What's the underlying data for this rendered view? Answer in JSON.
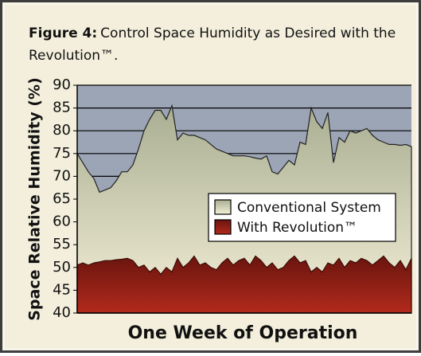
{
  "chart_data": {
    "type": "area",
    "title_label": "Figure 4:",
    "title": "Control Space Humidity as Desired with the Revolution™.",
    "ylabel": "Space Relative Humidity (%)",
    "xlabel": "One Week of Operation",
    "ylim": [
      40,
      90
    ],
    "yticks": [
      40,
      45,
      50,
      55,
      60,
      65,
      70,
      75,
      80,
      85,
      90
    ],
    "grid": true,
    "legend": "right",
    "series": [
      {
        "name": "Conventional System",
        "color": "#a9ae92",
        "values": [
          75,
          73,
          71,
          69.5,
          66.5,
          67,
          67.5,
          69,
          71,
          71,
          72.5,
          76,
          80,
          82.5,
          84.5,
          84.5,
          82.5,
          85.5,
          78,
          79.5,
          79,
          79,
          78.5,
          78,
          77,
          76,
          75.5,
          75,
          74.5,
          74.5,
          74.5,
          74.3,
          74,
          73.8,
          74.5,
          71,
          70.5,
          72,
          73.5,
          72.5,
          77.5,
          77,
          85,
          82,
          80.5,
          84,
          73,
          78.5,
          77.5,
          80,
          79.5,
          80,
          80.5,
          79,
          78,
          77.5,
          77,
          77,
          76.8,
          77,
          76.5
        ]
      },
      {
        "name": "With Revolution™",
        "color": "#7a1a12",
        "values": [
          50.5,
          51,
          50.5,
          51,
          51.2,
          51.5,
          51.5,
          51.7,
          51.8,
          52,
          51.5,
          50,
          50.5,
          49,
          50,
          48.5,
          50,
          49,
          52,
          50,
          51,
          52.5,
          50.5,
          51,
          50,
          49.5,
          51,
          52,
          50.5,
          51.5,
          52,
          50.5,
          52.5,
          51.5,
          50,
          51,
          49.5,
          50,
          51.5,
          52.5,
          51,
          51.5,
          49,
          50,
          49,
          51,
          50.5,
          52,
          50,
          51.5,
          51,
          52,
          51.5,
          50.5,
          51.5,
          52.5,
          51,
          50,
          51.5,
          49.5,
          52
        ]
      }
    ]
  }
}
